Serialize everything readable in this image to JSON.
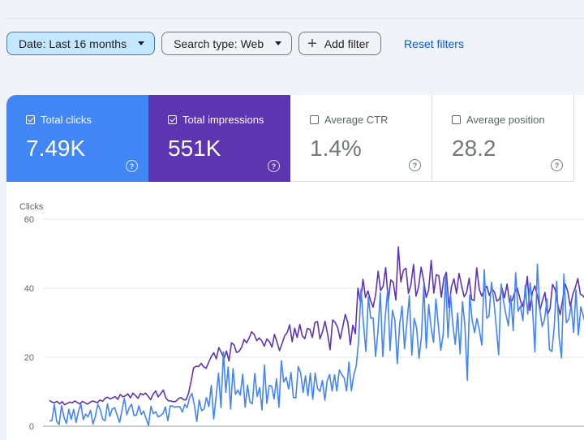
{
  "filters": {
    "date_label": "Date: Last 16 months",
    "search_type_label": "Search type: Web",
    "add_filter_label": "Add filter",
    "reset_label": "Reset filters"
  },
  "metrics": [
    {
      "label": "Total clicks",
      "value": "7.49K",
      "checked": true,
      "color": "#4285f4"
    },
    {
      "label": "Total impressions",
      "value": "551K",
      "checked": true,
      "color": "#5e35b1"
    },
    {
      "label": "Average CTR",
      "value": "1.4%",
      "checked": false
    },
    {
      "label": "Average position",
      "value": "28.2",
      "checked": false
    }
  ],
  "chart_data": {
    "type": "line",
    "ylabel": "Clicks",
    "ylim": [
      0,
      60
    ],
    "yticks": [
      0,
      20,
      40,
      60
    ],
    "grid": true,
    "series": [
      {
        "color": "#5e35b1",
        "values": [
          7.5,
          7,
          6.8,
          7.2,
          6.5,
          7.1,
          6.2,
          6.6,
          7,
          6.8,
          7.3,
          6.9,
          6.5,
          7.2,
          6.8,
          6.4,
          6.9,
          7.3,
          7.1,
          6.8,
          7.6,
          7.2,
          8.1,
          8.4,
          7.9,
          8.2,
          8.6,
          7.8,
          9.2,
          8.5,
          8.8,
          9.4,
          8.2,
          9.6,
          8.9,
          8.1,
          9.5,
          9.1,
          9.6,
          8.7,
          7.7,
          9.3,
          10.2,
          8.5,
          9.4,
          10.5,
          8.2,
          7.4,
          7.3,
          7.1,
          7.2,
          8.0,
          8.3,
          7.7,
          7.6,
          9.5,
          12.9,
          16.9,
          17.4,
          17.3,
          18.2,
          17.2,
          16.8,
          18.6,
          20.2,
          21.3,
          19.5,
          22.8,
          21.4,
          19.6,
          21.8,
          18.9,
          24.2,
          23.6,
          21.4,
          21.7,
          22.9,
          25.1,
          24.2,
          25.6,
          27.4,
          26.5,
          24.8,
          25.6,
          24.7,
          23.2,
          25.3,
          24.5,
          22.9,
          26.6,
          24.4,
          21.9,
          23.9,
          26.2,
          27.1,
          29.4,
          24.5,
          28.4,
          25.7,
          29.5,
          26.2,
          25.4,
          28.3,
          28.1,
          25.7,
          30.1,
          30.3,
          25.3,
          27.4,
          30.4,
          26.7,
          22.2,
          30.8,
          30.1,
          28.6,
          25.3,
          28.8,
          32.4,
          30.1,
          23.6,
          29.3,
          26.8,
          40.0,
          35.8,
          42.6,
          37.3,
          39.2,
          36.4,
          34.5,
          38.1,
          44.9,
          39.3,
          40.6,
          46.0,
          36.4,
          42.4,
          41.7,
          36.6,
          52.0,
          41.8,
          45.2,
          45.8,
          38.5,
          41.1,
          46.9,
          37.7,
          40.4,
          46.1,
          42.3,
          37.3,
          39.5,
          48.1,
          38.6,
          43.9,
          43.6,
          37.4,
          42.9,
          44.6,
          34.4,
          40.5,
          42.7,
          38.5,
          44.3,
          40.8,
          37.5,
          38.8,
          42.9,
          36.7,
          36.4,
          45.9,
          39.7,
          37.7,
          39.6,
          40.6,
          37.9,
          39.9,
          38.9,
          36.2,
          36.9,
          40.0,
          37.2,
          41.2,
          35.8,
          36.4,
          38.8,
          40.1,
          37.3,
          34.6,
          37.3,
          43.4,
          33.5,
          38.8,
          40.7,
          37.9,
          33.6,
          36.4,
          38.8,
          32.4,
          34.0,
          41.1,
          39.7,
          35.5,
          32.3,
          36.7,
          41.2,
          39.1,
          34.7,
          38.2,
          40.2,
          42.8,
          38.3,
          37.8,
          36.9,
          33.9,
          38.5
        ]
      },
      {
        "color": "#4285f4",
        "values": [
          1.5,
          1.7,
          6.3,
          1.4,
          0.5,
          6.0,
          2.6,
          0.8,
          4.9,
          2.0,
          4.9,
          1.1,
          4.3,
          6.4,
          1.9,
          3.5,
          2.7,
          4.6,
          0.6,
          2.9,
          6.3,
          4.9,
          2.1,
          1.6,
          6.5,
          2.9,
          5.0,
          5.4,
          3.2,
          1.1,
          4.5,
          8.1,
          3.3,
          5.3,
          6.4,
          3.1,
          3.2,
          5.9,
          3.4,
          4.4,
          2.2,
          0.2,
          5.8,
          3.6,
          4.2,
          2.7,
          3.1,
          3.7,
          5.6,
          1.6,
          5.9,
          5.8,
          5.5,
          5.7,
          5.6,
          4.1,
          6.3,
          5.4,
          8.2,
          9.5,
          6.0,
          1.4,
          7.6,
          4.5,
          5.0,
          8.3,
          5.7,
          11.8,
          2.1,
          8.7,
          15.4,
          5.4,
          21.5,
          9.8,
          17.2,
          5.0,
          16.7,
          9.2,
          10.5,
          9.0,
          15.1,
          5.5,
          11.9,
          7.0,
          6.5,
          15.3,
          8.6,
          11.2,
          4.7,
          17.7,
          6.6,
          11.8,
          11.6,
          7.9,
          13.7,
          5.5,
          19.0,
          12.8,
          14.2,
          10.8,
          15.6,
          8.3,
          8.2,
          17.3,
          15.4,
          9.8,
          14.6,
          8.8,
          15.4,
          7.8,
          15.4,
          10.9,
          10.1,
          13.3,
          7.5,
          13.2,
          15.0,
          10.2,
          14.9,
          10.2,
          16.3,
          15.0,
          14.0,
          10.2,
          18.6,
          10.3,
          14.9,
          17.4,
          24.7,
          39.7,
          29.7,
          21.7,
          37.5,
          31.3,
          31.4,
          20.2,
          27.5,
          38.7,
          20.2,
          31.6,
          39.3,
          21.9,
          33.6,
          30.8,
          18.1,
          29.7,
          34.8,
          22.5,
          30.1,
          37.9,
          20.6,
          31.3,
          28.5,
          19.7,
          26.0,
          41.0,
          22.6,
          35.3,
          28.5,
          24.3,
          36.9,
          29.3,
          22.0,
          26.6,
          43.3,
          25.7,
          38.3,
          29.5,
          23.7,
          32.8,
          21.0,
          36.1,
          29.1,
          13.3,
          38.1,
          30.8,
          27.1,
          31.2,
          27.9,
          23.5,
          45.4,
          31.3,
          31.9,
          41.7,
          36.2,
          28.6,
          20.7,
          41.2,
          36.2,
          32.3,
          29.1,
          37.8,
          27.7,
          44.5,
          33.3,
          34.8,
          30.6,
          40.9,
          32.5,
          41.6,
          34.3,
          21.5,
          47.0,
          33.9,
          28.9,
          31.0,
          36.9,
          22.2,
          21.7,
          28.8,
          42.0,
          25.7,
          19.8,
          44.1,
          30.0,
          31.0,
          35.1,
          27.2,
          39.5,
          26.4,
          34.6,
          31.9,
          29.5,
          35.1,
          43.8
        ]
      }
    ]
  }
}
